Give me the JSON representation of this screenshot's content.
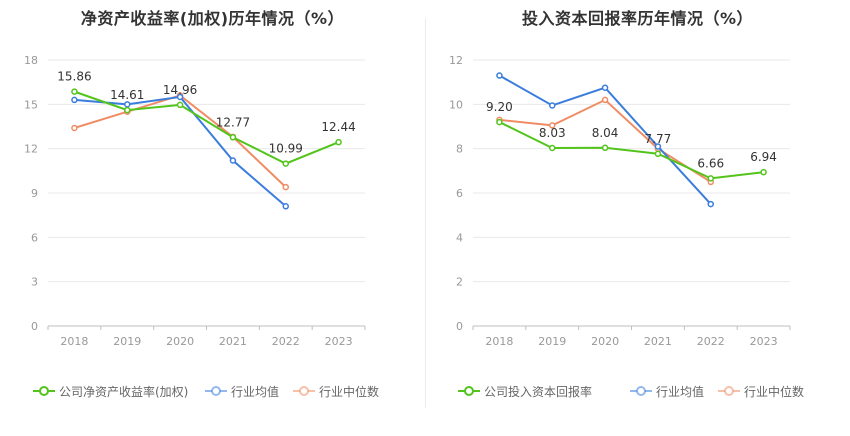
{
  "chart_data": [
    {
      "type": "line",
      "title": "净资产收益率(加权)历年情况（%）",
      "x": [
        "2018",
        "2019",
        "2020",
        "2021",
        "2022",
        "2023"
      ],
      "ylim": [
        0,
        18
      ],
      "yticks": [
        0,
        3,
        6,
        9,
        12,
        15,
        18
      ],
      "grid": true,
      "legend_position": "bottom",
      "series": [
        {
          "name": "公司净资产收益率(加权)",
          "color": "#52c41a",
          "values": [
            15.86,
            14.61,
            14.96,
            12.77,
            10.99,
            12.44
          ],
          "labels": [
            "15.86",
            "14.61",
            "14.96",
            "12.77",
            "10.99",
            "12.44"
          ]
        },
        {
          "name": "行业均值",
          "color": "#3b7ddd",
          "values": [
            15.3,
            15.0,
            15.5,
            11.2,
            8.1,
            null
          ]
        },
        {
          "name": "行业中位数",
          "color": "#f08c64",
          "values": [
            13.4,
            14.5,
            15.6,
            12.8,
            9.4,
            null
          ]
        }
      ]
    },
    {
      "type": "line",
      "title": "投入资本回报率历年情况（%）",
      "x": [
        "2018",
        "2019",
        "2020",
        "2021",
        "2022",
        "2023"
      ],
      "ylim": [
        0,
        12
      ],
      "yticks": [
        0,
        2,
        4,
        6,
        8,
        10,
        12
      ],
      "grid": true,
      "legend_position": "bottom",
      "series": [
        {
          "name": "公司投入资本回报率",
          "color": "#52c41a",
          "values": [
            9.2,
            8.03,
            8.04,
            7.77,
            6.66,
            6.94
          ],
          "labels": [
            "9.20",
            "8.03",
            "8.04",
            "7.77",
            "6.66",
            "6.94"
          ]
        },
        {
          "name": "行业均值",
          "color": "#3b7ddd",
          "values": [
            11.3,
            9.95,
            10.75,
            8.1,
            5.5,
            null
          ]
        },
        {
          "name": "行业中位数",
          "color": "#f08c64",
          "values": [
            9.3,
            9.05,
            10.2,
            8.0,
            6.5,
            null
          ]
        }
      ]
    }
  ]
}
